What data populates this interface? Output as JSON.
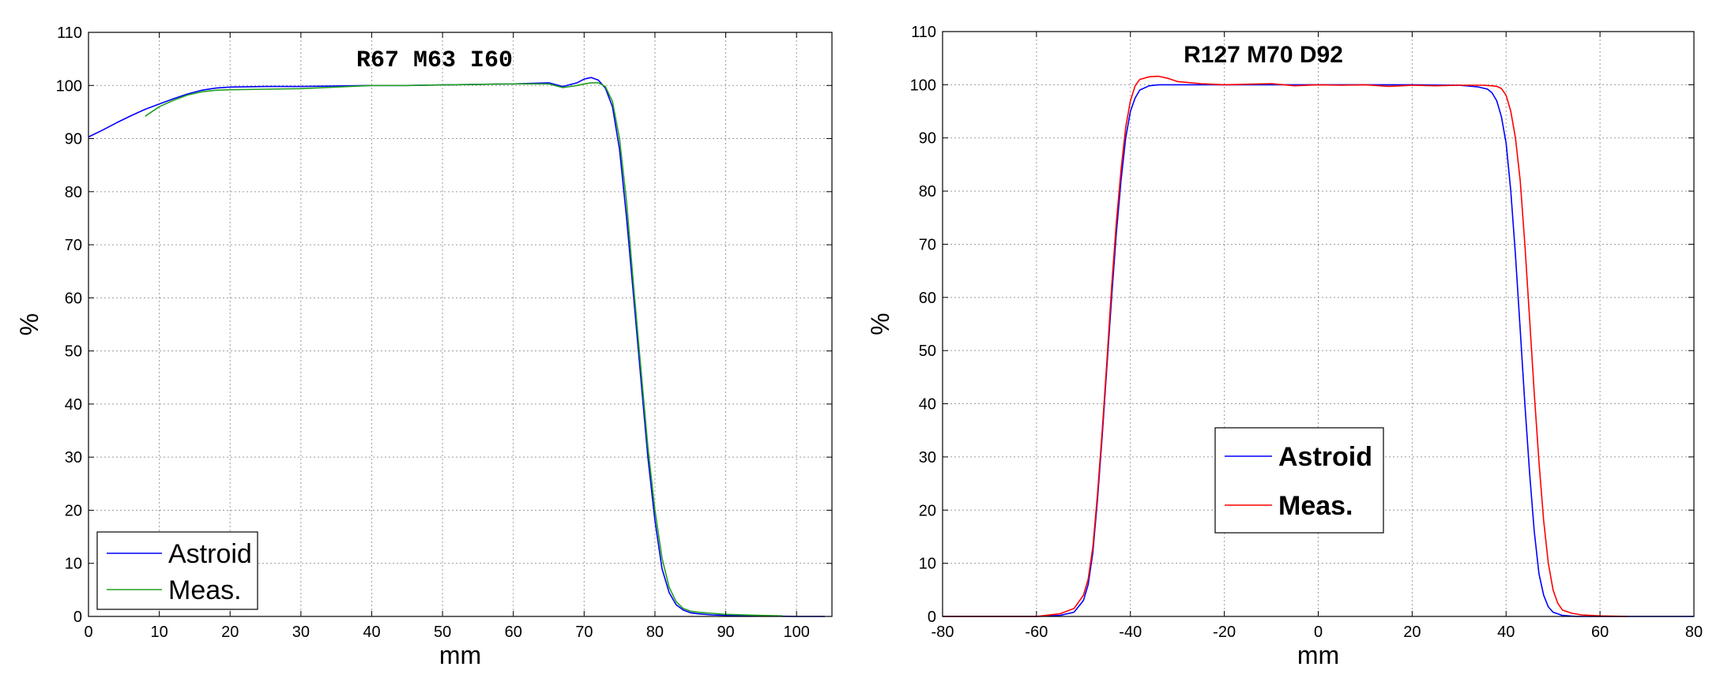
{
  "chart_data": [
    {
      "type": "line",
      "title": "R67  M63  I60",
      "xlabel": "mm",
      "ylabel": "%",
      "xlim": [
        0,
        105
      ],
      "ylim": [
        0,
        110
      ],
      "xticks": [
        0,
        10,
        20,
        30,
        40,
        50,
        60,
        70,
        80,
        90,
        100
      ],
      "yticks": [
        0,
        10,
        20,
        30,
        40,
        50,
        60,
        70,
        80,
        90,
        100,
        110
      ],
      "grid": true,
      "legend_position": "bottom-left",
      "series": [
        {
          "name": "Astroid",
          "color": "#0000ff",
          "x": [
            0,
            2,
            4,
            6,
            8,
            10,
            12,
            14,
            16,
            18,
            20,
            25,
            30,
            35,
            40,
            45,
            50,
            55,
            60,
            65,
            67,
            69,
            70,
            71,
            72,
            73,
            74,
            75,
            76,
            77,
            78,
            79,
            80,
            81,
            82,
            83,
            84,
            85,
            86,
            88,
            90,
            95,
            100,
            104
          ],
          "y": [
            90.3,
            91.6,
            93,
            94.3,
            95.5,
            96.5,
            97.5,
            98.4,
            99.1,
            99.5,
            99.7,
            99.8,
            99.8,
            99.9,
            100,
            100,
            100.1,
            100.2,
            100.3,
            100.5,
            99.8,
            100.5,
            101.2,
            101.5,
            101,
            99.5,
            96,
            88,
            75,
            60,
            45,
            30,
            18,
            9,
            4.5,
            2.2,
            1.2,
            0.7,
            0.5,
            0.3,
            0.2,
            0.1,
            0,
            0
          ]
        },
        {
          "name": "Meas.",
          "color": "#22a022",
          "x": [
            8,
            10,
            12,
            14,
            16,
            18,
            20,
            25,
            30,
            35,
            40,
            45,
            50,
            55,
            60,
            65,
            67,
            69,
            70,
            71,
            72,
            73,
            74,
            75,
            76,
            77,
            78,
            79,
            80,
            81,
            82,
            83,
            84,
            85,
            86,
            88,
            90,
            95,
            98
          ],
          "y": [
            94.2,
            96,
            97.2,
            98.2,
            98.8,
            99.1,
            99.2,
            99.3,
            99.4,
            99.7,
            100,
            100,
            100.1,
            100.2,
            100.3,
            100.3,
            99.6,
            100,
            100.3,
            100.5,
            100.5,
            99.8,
            97,
            90,
            78,
            62,
            47,
            32,
            20,
            11,
            5.5,
            2.8,
            1.5,
            1,
            0.8,
            0.6,
            0.4,
            0.2,
            0.1
          ]
        }
      ]
    },
    {
      "type": "line",
      "title": "R127 M70 D92",
      "xlabel": "mm",
      "ylabel": "%",
      "xlim": [
        -80,
        80
      ],
      "ylim": [
        0,
        110
      ],
      "xticks": [
        -80,
        -60,
        -40,
        -20,
        0,
        20,
        40,
        60,
        80
      ],
      "yticks": [
        0,
        10,
        20,
        30,
        40,
        50,
        60,
        70,
        80,
        90,
        100,
        110
      ],
      "grid": true,
      "legend_position": "center-left",
      "series": [
        {
          "name": "Astroid",
          "color": "#0000ff",
          "x": [
            -80,
            -70,
            -60,
            -55,
            -52,
            -50,
            -49,
            -48,
            -47,
            -46,
            -45,
            -44,
            -43,
            -42,
            -41,
            -40,
            -39,
            -38,
            -36,
            -34,
            -30,
            -20,
            -10,
            0,
            10,
            20,
            30,
            34,
            36,
            37,
            38,
            39,
            40,
            41,
            42,
            43,
            44,
            45,
            46,
            47,
            48,
            49,
            50,
            52,
            55,
            60,
            65,
            70,
            80
          ],
          "y": [
            0,
            0,
            0,
            0.2,
            0.8,
            3,
            6,
            12,
            22,
            34,
            47,
            60,
            72,
            82,
            90,
            95,
            97.5,
            99,
            99.8,
            100,
            100,
            100,
            100,
            100,
            100,
            100,
            99.9,
            99.6,
            99.2,
            98.5,
            97,
            94,
            89,
            80,
            68,
            54,
            40,
            27,
            16,
            8,
            4,
            1.8,
            0.8,
            0.2,
            0,
            0,
            0,
            0,
            0
          ]
        },
        {
          "name": "Meas.",
          "color": "#ff0000",
          "x": [
            -80,
            -70,
            -60,
            -55,
            -52,
            -50,
            -49,
            -48,
            -47,
            -46,
            -45,
            -44,
            -43,
            -42,
            -41,
            -40,
            -39,
            -38,
            -36,
            -34,
            -32,
            -30,
            -25,
            -20,
            -15,
            -10,
            -5,
            0,
            5,
            10,
            15,
            20,
            25,
            30,
            35,
            37,
            38,
            39,
            40,
            41,
            42,
            43,
            44,
            45,
            46,
            47,
            48,
            49,
            50,
            51,
            52,
            54,
            56,
            60,
            66
          ],
          "y": [
            0,
            0,
            0,
            0.5,
            1.5,
            4,
            7,
            13,
            23,
            35,
            48,
            62,
            74,
            84,
            92,
            97,
            99.8,
            101,
            101.5,
            101.6,
            101.2,
            100.6,
            100.2,
            100,
            100.1,
            100.2,
            99.8,
            100,
            99.9,
            100,
            99.7,
            99.9,
            99.8,
            99.9,
            99.9,
            99.8,
            99.7,
            99.3,
            98,
            95,
            90,
            82,
            70,
            56,
            42,
            29,
            18,
            10,
            5,
            2.5,
            1.2,
            0.6,
            0.3,
            0.1,
            0
          ]
        }
      ]
    }
  ]
}
